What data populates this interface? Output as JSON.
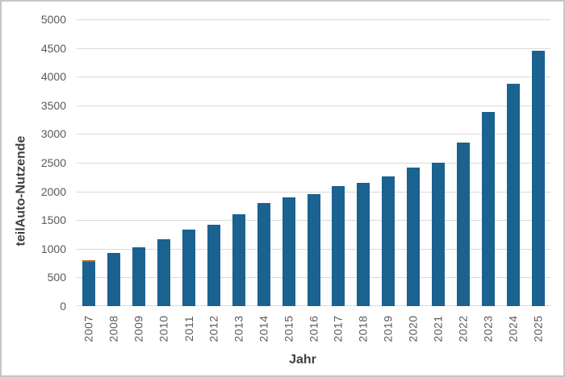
{
  "chart_data": {
    "type": "bar",
    "title": "",
    "xlabel": "Jahr",
    "ylabel": "teilAuto-Nutzende",
    "categories": [
      "2007",
      "2008",
      "2009",
      "2010",
      "2011",
      "2012",
      "2013",
      "2014",
      "2015",
      "2016",
      "2017",
      "2018",
      "2019",
      "2020",
      "2021",
      "2022",
      "2023",
      "2024",
      "2025"
    ],
    "values": [
      770,
      920,
      1025,
      1170,
      1330,
      1415,
      1600,
      1800,
      1895,
      1950,
      2095,
      2150,
      2260,
      2420,
      2495,
      2845,
      3390,
      3875,
      4450
    ],
    "ylim": [
      0,
      5000
    ],
    "yticks": [
      0,
      500,
      1000,
      1500,
      2000,
      2500,
      3000,
      3500,
      4000,
      4500,
      5000
    ],
    "grid": true,
    "legend": false,
    "bar_color": "#1a6290",
    "bar_caps": {
      "2007": "#b4691f"
    },
    "gridline_color": "#d9d9d9",
    "tick_label_color": "#595959",
    "axis_title_color": "#3f3f3f"
  }
}
